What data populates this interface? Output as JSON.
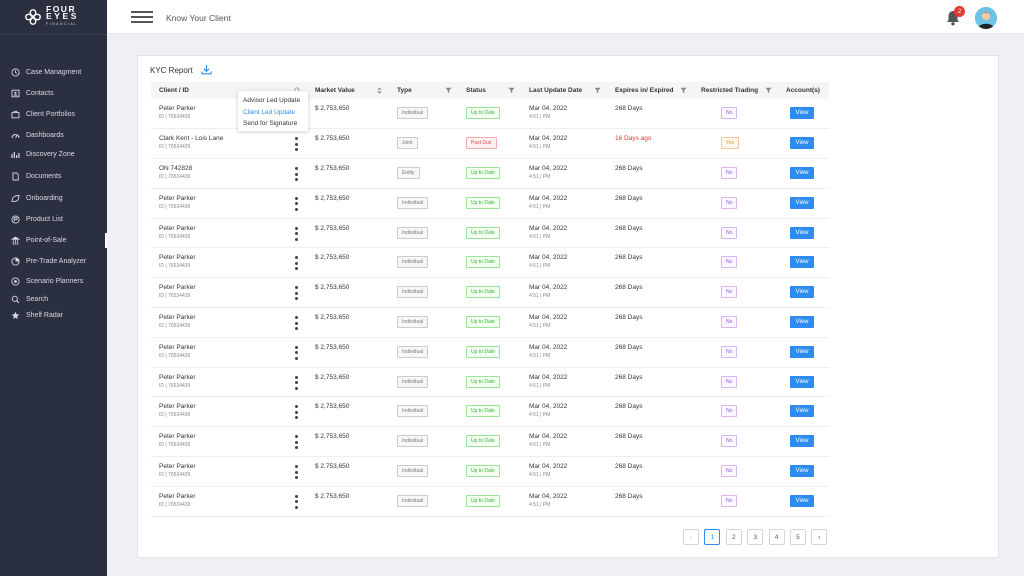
{
  "brand": {
    "line1": "FOUR",
    "line2": "EYES",
    "line3": "FINANCIAL"
  },
  "topbar": {
    "title": "Know Your Client",
    "notifications": "2"
  },
  "sidebar": {
    "items": [
      {
        "label": "Case Managment",
        "icon": "clock-icon"
      },
      {
        "label": "Contacts",
        "icon": "contacts-icon"
      },
      {
        "label": "Client Portfolios",
        "icon": "portfolio-icon"
      },
      {
        "label": "Dashboards",
        "icon": "dashboard-icon"
      },
      {
        "label": "Discovery Zone",
        "icon": "chart-icon"
      },
      {
        "label": "Documents",
        "icon": "document-icon"
      },
      {
        "label": "Onboarding",
        "icon": "onboarding-icon"
      },
      {
        "label": "Product List",
        "icon": "product-icon"
      },
      {
        "label": "Point-of-Sale",
        "icon": "bank-icon"
      },
      {
        "label": "Pre-Trade Analyzer",
        "icon": "analyzer-icon"
      },
      {
        "label": "Scenario Planners",
        "icon": "planner-icon"
      },
      {
        "label": "Search",
        "icon": "search-icon"
      },
      {
        "label": "Shelf Radar",
        "icon": "radar-icon"
      }
    ]
  },
  "report": {
    "title": "KYC Report"
  },
  "table": {
    "headers": [
      "Client / ID",
      "Market Value",
      "Type",
      "Status",
      "Last Update Date",
      "Expires in/ Expired",
      "Restricted Trading",
      "Account(s)"
    ],
    "view_label": "View",
    "rows": [
      {
        "name": "Peter Parker",
        "id": "ID | 76534439",
        "value": "$ 2,753,650",
        "type": "Individual",
        "status": "Up to Date",
        "date": "Mar 04, 2022",
        "time": "4:51 | PM",
        "expires": "268 Days",
        "restricted": "No"
      },
      {
        "name": "Clark Kent - Lois Lane",
        "id": "ID | 76534439",
        "value": "$ 2,753,650",
        "type": "Joint",
        "status": "Past Due",
        "date": "Mar 04, 2022",
        "time": "4:51 | PM",
        "expires": "16 Days ago",
        "restricted": "Yes"
      },
      {
        "name": "ON 742828",
        "id": "ID | 76534439",
        "value": "$ 2,753,650",
        "type": "Entity",
        "status": "Up to Date",
        "date": "Mar 04, 2022",
        "time": "4:51 | PM",
        "expires": "268 Days",
        "restricted": "No"
      },
      {
        "name": "Peter Parker",
        "id": "ID | 76534439",
        "value": "$ 2,753,650",
        "type": "Individual",
        "status": "Up to Date",
        "date": "Mar 04, 2022",
        "time": "4:51 | PM",
        "expires": "268 Days",
        "restricted": "No"
      },
      {
        "name": "Peter Parker",
        "id": "ID | 76534439",
        "value": "$ 2,753,650",
        "type": "Individual",
        "status": "Up to Date",
        "date": "Mar 04, 2022",
        "time": "4:51 | PM",
        "expires": "268 Days",
        "restricted": "No"
      },
      {
        "name": "Peter Parker",
        "id": "ID | 76534439",
        "value": "$ 2,753,650",
        "type": "Individual",
        "status": "Up to Date",
        "date": "Mar 04, 2022",
        "time": "4:51 | PM",
        "expires": "268 Days",
        "restricted": "No"
      },
      {
        "name": "Peter Parker",
        "id": "ID | 76534439",
        "value": "$ 2,753,650",
        "type": "Individual",
        "status": "Up to Date",
        "date": "Mar 04, 2022",
        "time": "4:51 | PM",
        "expires": "268 Days",
        "restricted": "No"
      },
      {
        "name": "Peter Parker",
        "id": "ID | 76534439",
        "value": "$ 2,753,650",
        "type": "Individual",
        "status": "Up to Date",
        "date": "Mar 04, 2022",
        "time": "4:51 | PM",
        "expires": "268 Days",
        "restricted": "No"
      },
      {
        "name": "Peter Parker",
        "id": "ID | 76534439",
        "value": "$ 2,753,650",
        "type": "Individual",
        "status": "Up to Date",
        "date": "Mar 04, 2022",
        "time": "4:51 | PM",
        "expires": "268 Days",
        "restricted": "No"
      },
      {
        "name": "Peter Parker",
        "id": "ID | 76534439",
        "value": "$ 2,753,650",
        "type": "Individual",
        "status": "Up to Date",
        "date": "Mar 04, 2022",
        "time": "4:51 | PM",
        "expires": "268 Days",
        "restricted": "No"
      },
      {
        "name": "Peter Parker",
        "id": "ID | 76534439",
        "value": "$ 2,753,650",
        "type": "Individual",
        "status": "Up to Date",
        "date": "Mar 04, 2022",
        "time": "4:51 | PM",
        "expires": "268 Days",
        "restricted": "No"
      },
      {
        "name": "Peter Parker",
        "id": "ID | 76534439",
        "value": "$ 2,753,650",
        "type": "Individual",
        "status": "Up to Date",
        "date": "Mar 04, 2022",
        "time": "4:51 | PM",
        "expires": "268 Days",
        "restricted": "No"
      },
      {
        "name": "Peter Parker",
        "id": "ID | 76534439",
        "value": "$ 2,753,650",
        "type": "Individual",
        "status": "Up to Date",
        "date": "Mar 04, 2022",
        "time": "4:51 | PM",
        "expires": "268 Days",
        "restricted": "No"
      },
      {
        "name": "Peter Parker",
        "id": "ID | 76534439",
        "value": "$ 2,753,650",
        "type": "Individual",
        "status": "Up to Date",
        "date": "Mar 04, 2022",
        "time": "4:51 | PM",
        "expires": "268 Days",
        "restricted": "No"
      }
    ]
  },
  "dropdown": {
    "items": [
      "Advisor Led Update",
      "Client Led Update",
      "Send for Signature"
    ],
    "highlighted": 1
  },
  "pagination": {
    "pages": [
      "1",
      "2",
      "3",
      "4",
      "5"
    ],
    "current": "1",
    "prev": "‹",
    "next": "›"
  },
  "colors": {
    "sidebar": "#2b3040",
    "accent": "#2d8cf0",
    "badge": "#e53935",
    "expired": "#e53935"
  }
}
